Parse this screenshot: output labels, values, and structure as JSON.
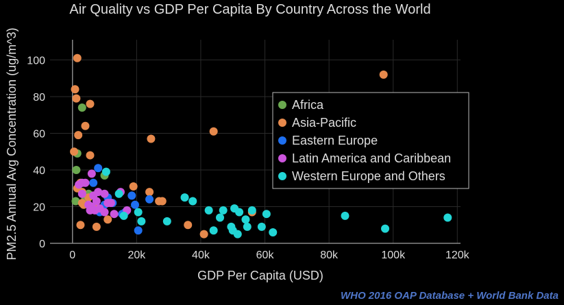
{
  "chart_data": {
    "type": "scatter",
    "title": "Air Quality vs GDP Per Capita By Country Across the World",
    "xlabel": "GDP Per Capita (USD)",
    "ylabel": "PM2.5 Annual Avg Concentration (ug/m^3)",
    "xlim": [
      -7000,
      121000
    ],
    "ylim": [
      0,
      111
    ],
    "xticks": [
      0,
      20000,
      40000,
      60000,
      80000,
      100000,
      120000
    ],
    "xtick_labels": [
      "0",
      "20k",
      "40k",
      "60k",
      "80k",
      "100k",
      "120k"
    ],
    "yticks": [
      0,
      20,
      40,
      60,
      80,
      100
    ],
    "ytick_labels": [
      "0",
      "20",
      "40",
      "60",
      "80",
      "100"
    ],
    "grid": true,
    "legend_position": "right",
    "background": "#000000",
    "series": [
      {
        "name": "Africa",
        "color": "#6aa84f",
        "points": [
          [
            1000,
            23
          ],
          [
            1200,
            40
          ],
          [
            1500,
            49
          ],
          [
            3000,
            74
          ],
          [
            4000,
            25
          ],
          [
            5000,
            27
          ],
          [
            6500,
            26
          ],
          [
            10000,
            37
          ]
        ]
      },
      {
        "name": "Asia-Pacific",
        "color": "#e6894c",
        "points": [
          [
            1500,
            101
          ],
          [
            800,
            84
          ],
          [
            1200,
            79
          ],
          [
            5500,
            76
          ],
          [
            4000,
            64
          ],
          [
            1800,
            59
          ],
          [
            500,
            50
          ],
          [
            5500,
            48
          ],
          [
            1500,
            30
          ],
          [
            2500,
            33
          ],
          [
            3000,
            22
          ],
          [
            3500,
            21
          ],
          [
            5000,
            25
          ],
          [
            7000,
            20
          ],
          [
            2500,
            10
          ],
          [
            7500,
            9
          ],
          [
            11000,
            13
          ],
          [
            19000,
            31
          ],
          [
            24500,
            57
          ],
          [
            24000,
            28
          ],
          [
            27000,
            23
          ],
          [
            28000,
            23
          ],
          [
            44000,
            61
          ],
          [
            97000,
            92
          ],
          [
            36000,
            10
          ],
          [
            41000,
            5
          ],
          [
            56000,
            17
          ],
          [
            3000,
            28
          ]
        ]
      },
      {
        "name": "Eastern Europe",
        "color": "#1e6ff0",
        "points": [
          [
            6500,
            33
          ],
          [
            8000,
            41
          ],
          [
            10000,
            21
          ],
          [
            12500,
            22
          ],
          [
            15500,
            16
          ],
          [
            16500,
            17
          ],
          [
            18500,
            26
          ],
          [
            19500,
            21
          ],
          [
            20500,
            7
          ],
          [
            24000,
            24
          ],
          [
            8500,
            17
          ],
          [
            11000,
            25
          ]
        ]
      },
      {
        "name": "Latin America and Caribbean",
        "color": "#cc55dd",
        "points": [
          [
            2000,
            32
          ],
          [
            3000,
            33
          ],
          [
            4000,
            33
          ],
          [
            6000,
            38
          ],
          [
            6500,
            26
          ],
          [
            7500,
            23
          ],
          [
            10000,
            27
          ],
          [
            3000,
            27
          ],
          [
            5000,
            21
          ],
          [
            6000,
            20
          ],
          [
            5500,
            18
          ],
          [
            7000,
            18
          ],
          [
            8500,
            19
          ],
          [
            10000,
            17
          ],
          [
            11000,
            22
          ],
          [
            12000,
            22
          ],
          [
            13000,
            16
          ],
          [
            15000,
            28
          ],
          [
            17000,
            18
          ],
          [
            8000,
            28
          ]
        ]
      },
      {
        "name": "Western Europe and Others",
        "color": "#22d6d6",
        "points": [
          [
            10500,
            39
          ],
          [
            14500,
            27
          ],
          [
            16000,
            15
          ],
          [
            20500,
            17
          ],
          [
            21500,
            12
          ],
          [
            29500,
            12
          ],
          [
            35000,
            25
          ],
          [
            37500,
            23
          ],
          [
            42500,
            18
          ],
          [
            44000,
            7
          ],
          [
            46000,
            14
          ],
          [
            47000,
            18
          ],
          [
            49500,
            9
          ],
          [
            50000,
            7
          ],
          [
            50500,
            19
          ],
          [
            52000,
            17
          ],
          [
            51500,
            5
          ],
          [
            54000,
            13
          ],
          [
            54500,
            9
          ],
          [
            56000,
            18
          ],
          [
            59000,
            9
          ],
          [
            60500,
            16
          ],
          [
            62500,
            6
          ],
          [
            85000,
            15
          ],
          [
            97500,
            8
          ],
          [
            117000,
            14
          ]
        ]
      }
    ]
  },
  "credit": "WHO 2016  OAP Database + World Bank Data"
}
